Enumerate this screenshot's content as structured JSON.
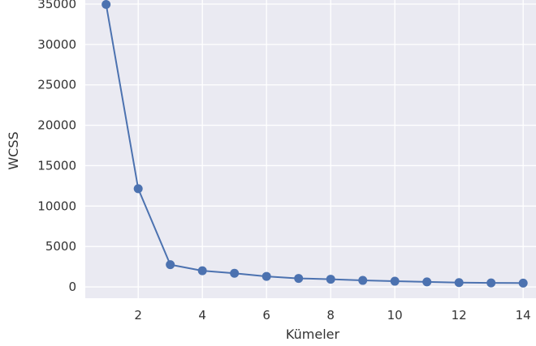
{
  "chart_data": {
    "type": "line",
    "title": "",
    "xlabel": "Kümeler",
    "ylabel": "WCSS",
    "x": [
      1,
      2,
      3,
      4,
      5,
      6,
      7,
      8,
      9,
      10,
      11,
      12,
      13,
      14
    ],
    "series": [
      {
        "values": [
          34950,
          12150,
          2750,
          2000,
          1680,
          1300,
          1050,
          950,
          800,
          700,
          620,
          530,
          490,
          470
        ]
      }
    ],
    "xlim": [
      0.35,
      14.4
    ],
    "ylim": [
      -1400,
      35500
    ],
    "xticks": [
      2,
      4,
      6,
      8,
      10,
      12,
      14
    ],
    "yticks": [
      0,
      5000,
      10000,
      15000,
      20000,
      25000,
      30000,
      35000
    ],
    "grid": true,
    "colors": {
      "background": "#EAEAF2",
      "grid": "#FFFFFF",
      "line": "#4C72B0"
    }
  }
}
